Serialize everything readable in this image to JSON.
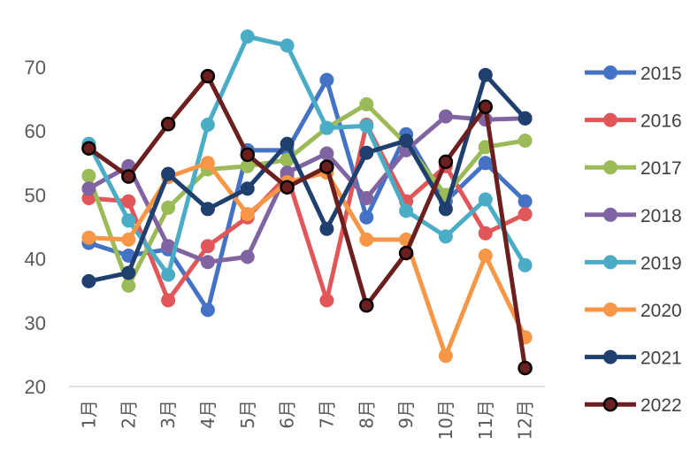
{
  "chart_data": {
    "type": "line",
    "title": "",
    "xlabel": "",
    "ylabel": "",
    "categories": [
      "1月",
      "2月",
      "3月",
      "4月",
      "5月",
      "6月",
      "7月",
      "8月",
      "9月",
      "10月",
      "11月",
      "12月"
    ],
    "y_ticks": [
      "20",
      "30",
      "40",
      "50",
      "60",
      "70"
    ],
    "ylim": [
      20,
      77
    ],
    "grid": false,
    "legend_position": "right",
    "series": [
      {
        "name": "2015",
        "color": "#4472C4",
        "values": [
          42.5,
          40.5,
          41.5,
          32,
          57,
          57,
          68,
          46.5,
          59.5,
          49,
          55,
          49
        ]
      },
      {
        "name": "2016",
        "color": "#E15759",
        "values": [
          49.5,
          49,
          33.5,
          42,
          46.5,
          53,
          33.5,
          61,
          49,
          54.5,
          44,
          47
        ]
      },
      {
        "name": "2017",
        "color": "#9BBB59",
        "values": [
          53,
          35.8,
          48,
          54,
          54.5,
          55.5,
          60.5,
          64.2,
          58,
          50,
          57.5,
          58.5
        ]
      },
      {
        "name": "2018",
        "color": "#8064A2",
        "values": [
          51,
          54.5,
          42,
          39.5,
          40.3,
          53.5,
          56.5,
          49.5,
          57,
          62.3,
          61.8,
          62
        ]
      },
      {
        "name": "2019",
        "color": "#4BACC6",
        "values": [
          58,
          46,
          37.5,
          61,
          74.8,
          73.4,
          60.5,
          60.8,
          47.5,
          43.5,
          49.3,
          39
        ]
      },
      {
        "name": "2020",
        "color": "#F79646",
        "values": [
          43.3,
          43,
          52.8,
          55,
          47,
          52,
          53.5,
          43,
          43,
          24.8,
          40.5,
          27.7
        ]
      },
      {
        "name": "2021",
        "color": "#1F3F6E",
        "values": [
          36.5,
          37.8,
          53.3,
          47.8,
          51,
          58,
          44.7,
          56.6,
          58.5,
          47.8,
          68.8,
          62
        ]
      },
      {
        "name": "2022",
        "color": "#6B1F1F",
        "values": [
          57.3,
          52.9,
          61.1,
          68.6,
          56.3,
          51.2,
          54.4,
          32.7,
          40.9,
          55.2,
          63.8,
          22.9
        ]
      }
    ]
  }
}
